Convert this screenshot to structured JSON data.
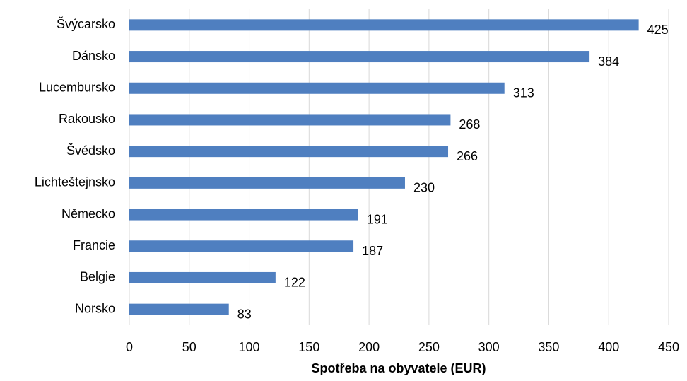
{
  "chart_data": {
    "type": "barh",
    "xlabel": "Spotřeba na obyvatele (EUR)",
    "categories": [
      "Švýcarsko",
      "Dánsko",
      "Lucembursko",
      "Rakousko",
      "Švédsko",
      "Lichteštejnsko",
      "Německo",
      "Francie",
      "Belgie",
      "Norsko"
    ],
    "values": [
      425,
      384,
      313,
      268,
      266,
      230,
      191,
      187,
      122,
      83
    ],
    "color": "#4f7fc0",
    "xlim": [
      0,
      450
    ],
    "xticks": [
      0,
      50,
      100,
      150,
      200,
      250,
      300,
      350,
      400,
      450
    ],
    "grid": true
  }
}
